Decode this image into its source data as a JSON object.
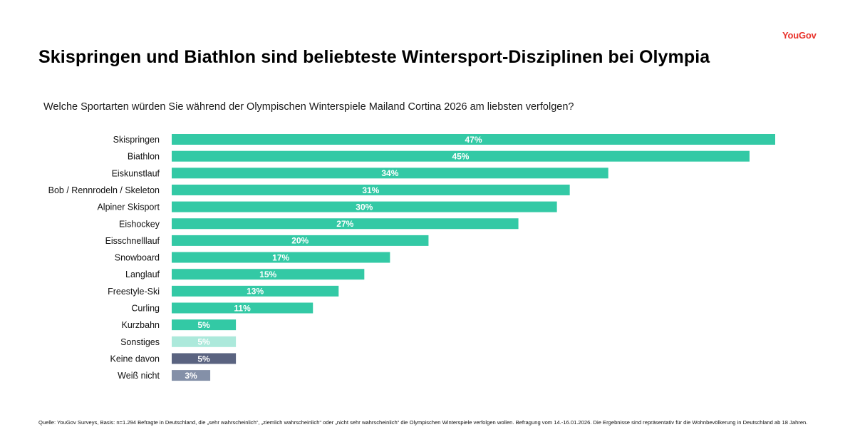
{
  "brand": {
    "logo_text": "YouGov",
    "logo_color": "#e8322b"
  },
  "header": {
    "title": "Skispringen und Biathlon sind beliebteste Wintersport-Disziplinen bei Olympia",
    "question": "Welche Sportarten würden Sie während der Olympischen Winterspiele Mailand Cortina 2026 am liebsten verfolgen?"
  },
  "chart_data": {
    "type": "bar",
    "orientation": "horizontal",
    "title": "Skispringen und Biathlon sind beliebteste Wintersport-Disziplinen bei Olympia",
    "subtitle": "Welche Sportarten würden Sie während der Olympischen Winterspiele Mailand Cortina 2026 am liebsten verfolgen?",
    "xlabel": "",
    "ylabel": "",
    "unit": "%",
    "grid": false,
    "legend": "none",
    "xlim": [
      0,
      47
    ],
    "categories": [
      "Skispringen",
      "Biathlon",
      "Eiskunstlauf",
      "Bob / Rennrodeln / Skeleton",
      "Alpiner Skisport",
      "Eishockey",
      "Eisschnelllauf",
      "Snowboard",
      "Langlauf",
      "Freestyle-Ski",
      "Curling",
      "Kurzbahn",
      "Sonstiges",
      "Keine davon",
      "Weiß nicht"
    ],
    "values": [
      47,
      45,
      34,
      31,
      30,
      27,
      20,
      17,
      15,
      13,
      11,
      5,
      5,
      5,
      3
    ],
    "value_labels": [
      "47%",
      "45%",
      "34%",
      "31%",
      "30%",
      "27%",
      "20%",
      "17%",
      "15%",
      "13%",
      "11%",
      "5%",
      "5%",
      "5%",
      "3%"
    ],
    "colors": [
      "#33c9a5",
      "#33c9a5",
      "#33c9a5",
      "#33c9a5",
      "#33c9a5",
      "#33c9a5",
      "#33c9a5",
      "#33c9a5",
      "#33c9a5",
      "#33c9a5",
      "#33c9a5",
      "#33c9a5",
      "#ace9db",
      "#5a6380",
      "#8490a8"
    ]
  },
  "footer": {
    "source": "Quelle: YouGov Surveys, Basis: n=1.294 Befragte in Deutschland, die „sehr wahrscheinlich“, „ziemlich wahrscheinlich“ oder „nicht sehr wahrscheinlich“ die Olympischen Winterspiele verfolgen wollen. Befragung vom 14.-16.01.2026. Die Ergebnisse sind repräsentativ für die Wohnbevölkerung in Deutschland ab 18 Jahren."
  }
}
